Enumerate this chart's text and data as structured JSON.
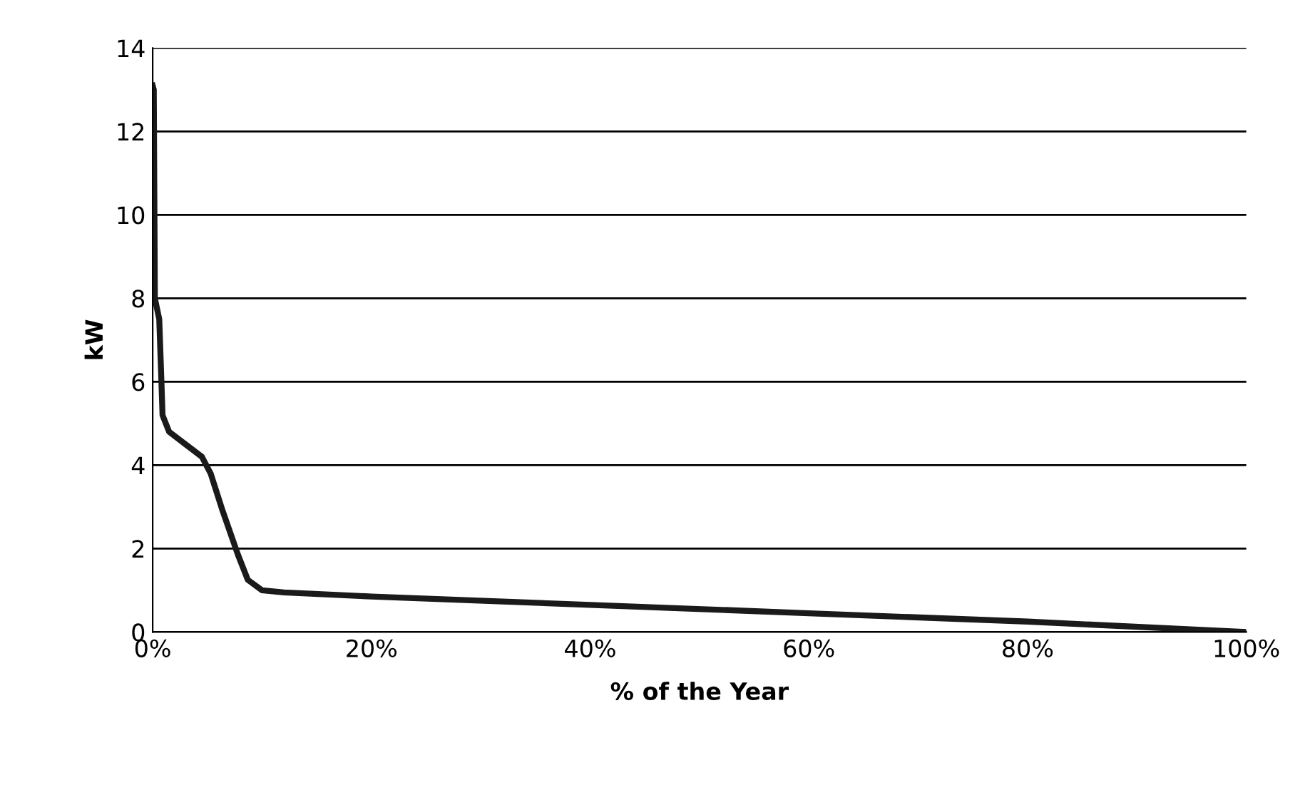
{
  "chart_data": {
    "type": "line",
    "xlabel": "% of the Year",
    "ylabel": "kW",
    "x": [
      0,
      0.1,
      0.2,
      0.6,
      0.8,
      0.9,
      1.5,
      3,
      4.5,
      5.3,
      6.4,
      7.8,
      8.7,
      10,
      12,
      20,
      40,
      60,
      80,
      100
    ],
    "series": [
      {
        "color": "#1a1a1a",
        "values": [
          13.1,
          13,
          8,
          7.5,
          6,
          5.2,
          4.8,
          4.5,
          4.2,
          3.8,
          2.9,
          1.85,
          1.25,
          1.0,
          0.95,
          0.85,
          0.65,
          0.45,
          0.25,
          0
        ]
      }
    ],
    "xlim": [
      0,
      100
    ],
    "xticks": [
      {
        "value": 0,
        "label": "0%"
      },
      {
        "value": 20,
        "label": "20%"
      },
      {
        "value": 40,
        "label": "40%"
      },
      {
        "value": 60,
        "label": "60%"
      },
      {
        "value": 80,
        "label": "80%"
      },
      {
        "value": 100,
        "label": "100%"
      }
    ],
    "ylim": [
      0,
      14
    ],
    "yticks": [
      0,
      2,
      4,
      6,
      8,
      10,
      12,
      14
    ],
    "grid": "y",
    "legend": false,
    "marker": "none",
    "line_style": "solid"
  }
}
